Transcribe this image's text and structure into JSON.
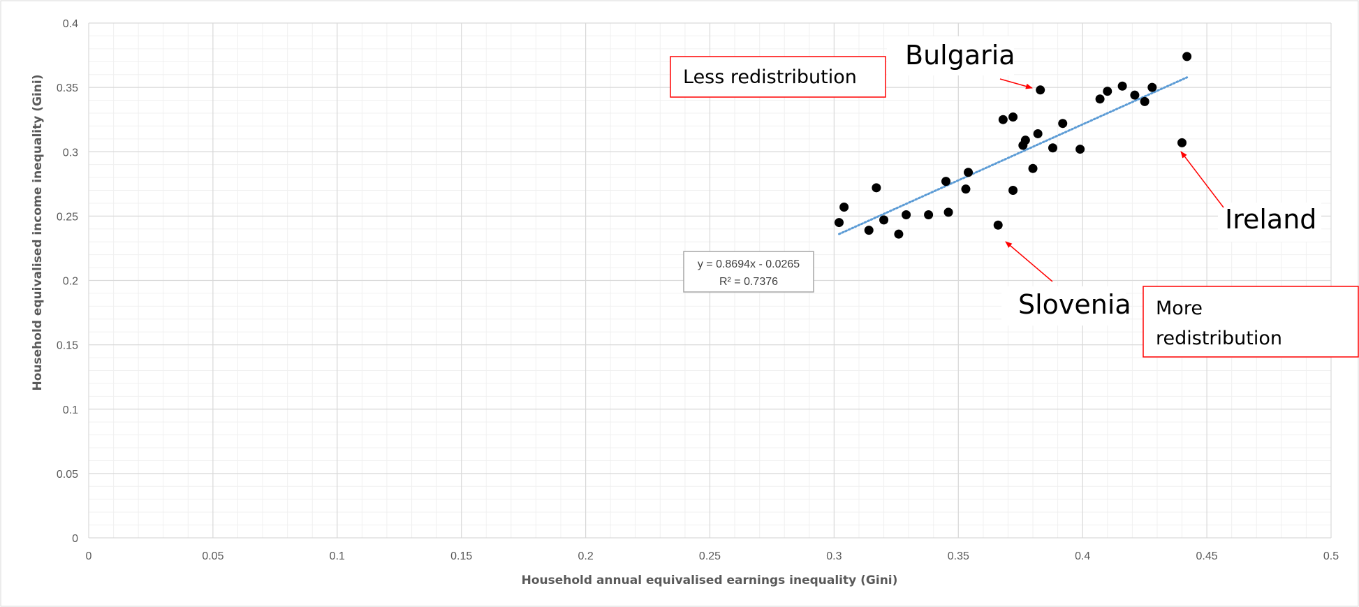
{
  "chart_data": {
    "type": "scatter",
    "xlabel": "Household annual equivalised earnings inequality (Gini)",
    "ylabel": "Household equivalised income inequality (Gini)",
    "xlim": [
      0,
      0.5
    ],
    "ylim": [
      0,
      0.4
    ],
    "x_ticks": [
      "0",
      "0.05",
      "0.1",
      "0.15",
      "0.2",
      "0.25",
      "0.3",
      "0.35",
      "0.4",
      "0.45",
      "0.5"
    ],
    "y_ticks": [
      "0",
      "0.05",
      "0.1",
      "0.15",
      "0.2",
      "0.25",
      "0.3",
      "0.35",
      "0.4"
    ],
    "grid": true,
    "points": [
      {
        "x": 0.302,
        "y": 0.245
      },
      {
        "x": 0.304,
        "y": 0.257
      },
      {
        "x": 0.314,
        "y": 0.239
      },
      {
        "x": 0.317,
        "y": 0.272
      },
      {
        "x": 0.32,
        "y": 0.247
      },
      {
        "x": 0.326,
        "y": 0.236
      },
      {
        "x": 0.329,
        "y": 0.251
      },
      {
        "x": 0.338,
        "y": 0.251
      },
      {
        "x": 0.345,
        "y": 0.277
      },
      {
        "x": 0.346,
        "y": 0.253
      },
      {
        "x": 0.353,
        "y": 0.271
      },
      {
        "x": 0.354,
        "y": 0.284
      },
      {
        "x": 0.366,
        "y": 0.243
      },
      {
        "x": 0.368,
        "y": 0.325
      },
      {
        "x": 0.372,
        "y": 0.327
      },
      {
        "x": 0.372,
        "y": 0.27
      },
      {
        "x": 0.376,
        "y": 0.305
      },
      {
        "x": 0.377,
        "y": 0.309
      },
      {
        "x": 0.38,
        "y": 0.287
      },
      {
        "x": 0.382,
        "y": 0.314
      },
      {
        "x": 0.383,
        "y": 0.348
      },
      {
        "x": 0.388,
        "y": 0.303
      },
      {
        "x": 0.392,
        "y": 0.322
      },
      {
        "x": 0.399,
        "y": 0.302
      },
      {
        "x": 0.407,
        "y": 0.341
      },
      {
        "x": 0.41,
        "y": 0.347
      },
      {
        "x": 0.416,
        "y": 0.351
      },
      {
        "x": 0.421,
        "y": 0.344
      },
      {
        "x": 0.425,
        "y": 0.339
      },
      {
        "x": 0.428,
        "y": 0.35
      },
      {
        "x": 0.44,
        "y": 0.307
      },
      {
        "x": 0.442,
        "y": 0.374
      }
    ],
    "trendline": {
      "slope": 0.8694,
      "intercept": -0.0265,
      "x_range": [
        0.302,
        0.442
      ],
      "color": "#5b9bd5",
      "equation_text": "y = 0.8694x - 0.0265",
      "r2_text": "R² = 0.7376"
    },
    "annotations": {
      "bulgaria": {
        "text": "Bulgaria",
        "target": {
          "x": 0.383,
          "y": 0.348
        }
      },
      "ireland": {
        "text": "Ireland",
        "target": {
          "x": 0.44,
          "y": 0.307
        }
      },
      "slovenia": {
        "text": "Slovenia",
        "target": {
          "x": 0.366,
          "y": 0.243
        }
      },
      "less_redistribution": "Less redistribution",
      "more_redistribution_line1": "More",
      "more_redistribution_line2": "redistribution"
    },
    "colors": {
      "points": "#000000",
      "grid_major": "#d9d9d9",
      "grid_minor": "#f0f0f0",
      "arrows": "#ff0000",
      "box_border": "#ff0000"
    }
  }
}
